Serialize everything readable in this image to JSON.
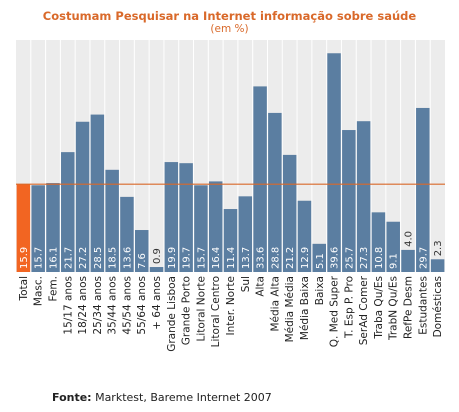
{
  "chart_data": {
    "type": "bar",
    "title": "Costumam Pesquisar  na Internet informação sobre saúde",
    "subtitle": "(em %)",
    "categories": [
      "Total",
      "Masc.",
      "Fem.",
      "15/17 anos",
      "18/24 anos",
      "25/34 anos",
      "35/44 anos",
      "45/54 anos",
      "55/64 anos",
      "+ 64 anos",
      "Grande Lisboa",
      "Grande Porto",
      "Litoral Norte",
      "Litoral Centro",
      "Inter. Norte",
      "Sul",
      "Alta",
      "Média Alta",
      "Média Média",
      "Média Baixa",
      "Baixa",
      "Q. Med Super",
      "T. Esp P. Pro",
      "SerAd Comer",
      "Traba Qu/Es",
      "TrabN Qu/Es",
      "RefPe Desm",
      "Estudantes",
      "Domésticas"
    ],
    "values": [
      15.9,
      15.7,
      16.1,
      21.7,
      27.2,
      28.5,
      18.5,
      13.6,
      7.6,
      0.9,
      19.9,
      19.7,
      15.7,
      16.4,
      11.4,
      13.7,
      33.6,
      28.8,
      21.2,
      12.9,
      5.1,
      39.6,
      25.7,
      27.3,
      10.8,
      9.1,
      4.0,
      29.7,
      2.3
    ],
    "value_labels": [
      "15.9",
      "15.7",
      "16.1",
      "21.7",
      "27.2",
      "28.5",
      "18.5",
      "13.6",
      "7.6",
      "0.9",
      "19.9",
      "19.7",
      "15.7",
      "16.4",
      "11.4",
      "13.7",
      "33.6",
      "28.8",
      "21.2",
      "12.9",
      "5.1",
      "39.6",
      "25.7",
      "27.3",
      "10.8",
      "9.1",
      "4.0",
      "29.7",
      "2.3"
    ],
    "highlight_index": 0,
    "reference_line": 15.9,
    "ylim": [
      0,
      42
    ],
    "colors": {
      "bar": "#5b7ea1",
      "highlight": "#f26522",
      "reference_line": "#d9692a",
      "plot_background": "#ececec",
      "grid": "#ffffff",
      "label_on_bar": "#ffffff",
      "label_above": "#333333"
    }
  },
  "source": {
    "label": "Fonte:",
    "text": " Marktest, Bareme Internet 2007"
  }
}
